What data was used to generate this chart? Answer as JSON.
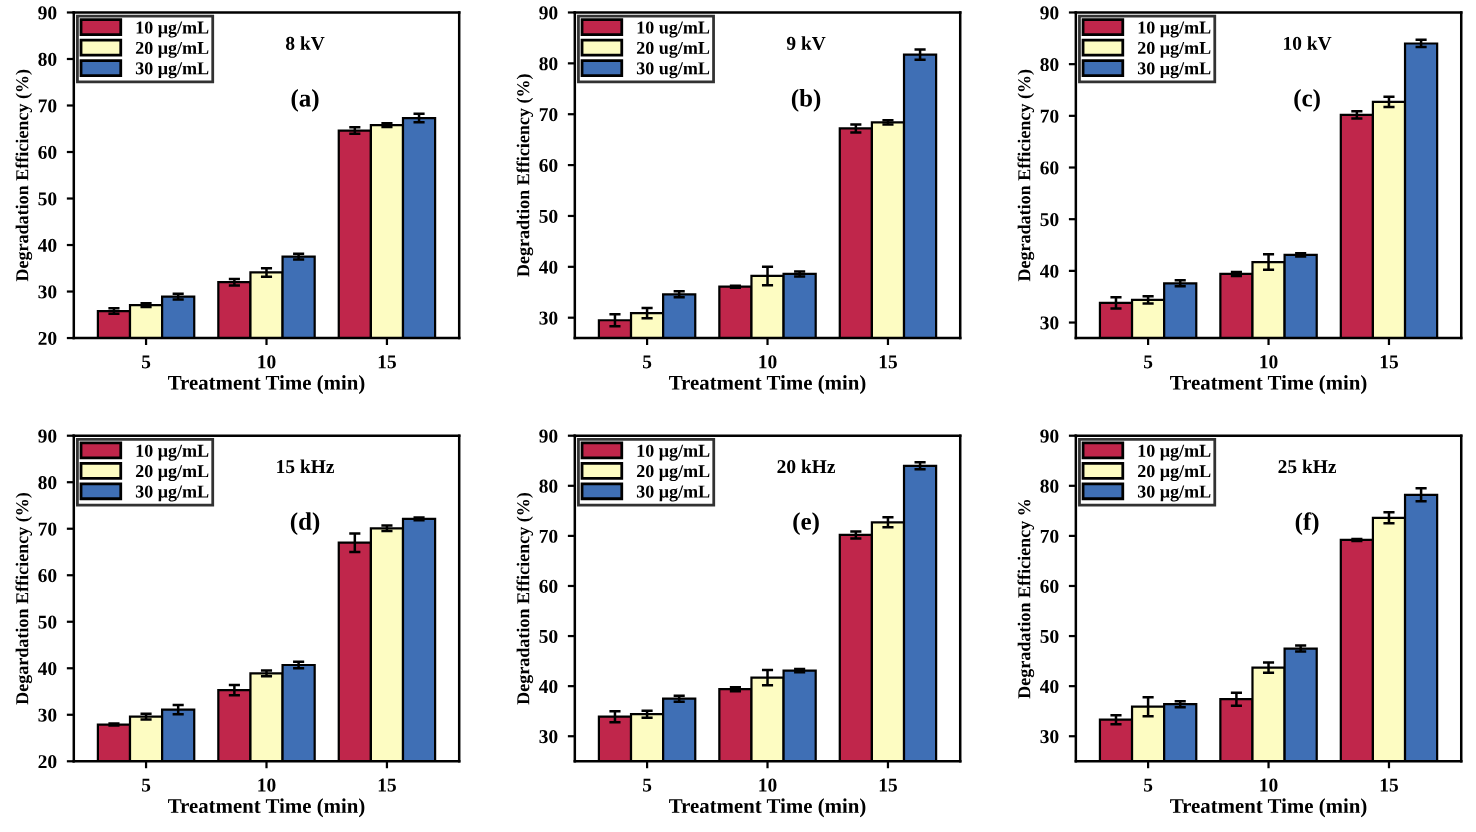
{
  "chart_data": [
    {
      "type": "bar",
      "categories": [
        "5",
        "10",
        "15"
      ],
      "xlabel": "Treatment Time (min)",
      "ylabel": "Degradation Efficiency (%)",
      "annotations": [
        "8 kV",
        "(a)"
      ],
      "ylim": [
        20,
        90
      ],
      "yticks": [
        20,
        30,
        40,
        50,
        60,
        70,
        80,
        90
      ],
      "legend": "top left",
      "grid": false,
      "series": [
        {
          "name": "10 μg/mL",
          "color": "#c0264b",
          "values": [
            25.8,
            32.0,
            64.6
          ],
          "errors": [
            0.6,
            0.7,
            0.7
          ]
        },
        {
          "name": "20 μg/mL",
          "color": "#fdfcc2",
          "values": [
            27.1,
            34.1,
            65.8
          ],
          "errors": [
            0.4,
            0.9,
            0.4
          ]
        },
        {
          "name": "30 μg/mL",
          "color": "#3f6fb5",
          "values": [
            28.9,
            37.5,
            67.3
          ],
          "errors": [
            0.6,
            0.6,
            0.9
          ]
        }
      ]
    },
    {
      "type": "bar",
      "categories": [
        "5",
        "10",
        "15"
      ],
      "xlabel": "Treatment Time (min)",
      "ylabel": "Degradtion Efficiency (%)",
      "annotations": [
        "9 kV",
        "(b)"
      ],
      "ylim": [
        26,
        90
      ],
      "yticks": [
        30,
        40,
        50,
        60,
        70,
        80,
        90
      ],
      "legend": "top left",
      "grid": false,
      "series": [
        {
          "name": "10 ug/mL",
          "color": "#c0264b",
          "values": [
            29.5,
            36.1,
            67.2
          ],
          "errors": [
            1.2,
            0.2,
            0.8
          ]
        },
        {
          "name": "20 ug/mL",
          "color": "#fdfcc2",
          "values": [
            30.9,
            38.2,
            68.4
          ],
          "errors": [
            1.0,
            1.8,
            0.4
          ]
        },
        {
          "name": "30 ug/mL",
          "color": "#3f6fb5",
          "values": [
            34.6,
            38.6,
            81.7
          ],
          "errors": [
            0.6,
            0.5,
            1.0
          ]
        }
      ]
    },
    {
      "type": "bar",
      "categories": [
        "5",
        "10",
        "15"
      ],
      "xlabel": "Treatment Time (min)",
      "ylabel": "Degradation Efficiency (%)",
      "annotations": [
        "10 kV",
        "(c)"
      ],
      "ylim": [
        27,
        90
      ],
      "yticks": [
        30,
        40,
        50,
        60,
        70,
        80,
        90
      ],
      "legend": "top left",
      "grid": false,
      "series": [
        {
          "name": "10 μg/mL",
          "color": "#c0264b",
          "values": [
            33.8,
            39.4,
            70.2
          ],
          "errors": [
            1.1,
            0.4,
            0.7
          ]
        },
        {
          "name": "20 μg/mL",
          "color": "#fdfcc2",
          "values": [
            34.4,
            41.7,
            72.7
          ],
          "errors": [
            0.7,
            1.5,
            1.0
          ]
        },
        {
          "name": "30 μg/mL",
          "color": "#3f6fb5",
          "values": [
            37.6,
            43.1,
            84.0
          ],
          "errors": [
            0.6,
            0.3,
            0.7
          ]
        }
      ]
    },
    {
      "type": "bar",
      "categories": [
        "5",
        "10",
        "15"
      ],
      "xlabel": "Treatment Time (min)",
      "ylabel": "Degardation Efficiency (%)",
      "annotations": [
        "15 kHz",
        "(d)"
      ],
      "ylim": [
        20,
        90
      ],
      "yticks": [
        20,
        30,
        40,
        50,
        60,
        70,
        80,
        90
      ],
      "legend": "top left",
      "grid": false,
      "series": [
        {
          "name": "10 μg/mL",
          "color": "#c0264b",
          "values": [
            27.9,
            35.3,
            67.0
          ],
          "errors": [
            0.2,
            1.1,
            2.0
          ]
        },
        {
          "name": "20 μg/mL",
          "color": "#fdfcc2",
          "values": [
            29.6,
            38.9,
            70.1
          ],
          "errors": [
            0.6,
            0.6,
            0.6
          ]
        },
        {
          "name": "30 μg/mL",
          "color": "#3f6fb5",
          "values": [
            31.1,
            40.7,
            72.1
          ],
          "errors": [
            1.0,
            0.7,
            0.3
          ]
        }
      ]
    },
    {
      "type": "bar",
      "categories": [
        "5",
        "10",
        "15"
      ],
      "xlabel": "Treatment Time (min)",
      "ylabel": "Degradation Efficiency (%)",
      "annotations": [
        "20 kHz",
        "(e)"
      ],
      "ylim": [
        25,
        90
      ],
      "yticks": [
        30,
        40,
        50,
        60,
        70,
        80,
        90
      ],
      "legend": "top left",
      "grid": false,
      "series": [
        {
          "name": "10 μg/mL",
          "color": "#c0264b",
          "values": [
            33.9,
            39.4,
            70.2
          ],
          "errors": [
            1.1,
            0.4,
            0.7
          ]
        },
        {
          "name": "20 μg/mL",
          "color": "#fdfcc2",
          "values": [
            34.4,
            41.7,
            72.7
          ],
          "errors": [
            0.7,
            1.5,
            1.0
          ]
        },
        {
          "name": "30 μg/mL",
          "color": "#3f6fb5",
          "values": [
            37.5,
            43.1,
            84.0
          ],
          "errors": [
            0.6,
            0.3,
            0.7
          ]
        }
      ]
    },
    {
      "type": "bar",
      "categories": [
        "5",
        "10",
        "15"
      ],
      "xlabel": "Treatment Time (min)",
      "ylabel": "Degradation Efficiency %",
      "annotations": [
        "25 kHz",
        "(f)"
      ],
      "ylim": [
        25,
        90
      ],
      "yticks": [
        30,
        40,
        50,
        60,
        70,
        80,
        90
      ],
      "legend": "top left",
      "grid": false,
      "series": [
        {
          "name": "10 μg/mL",
          "color": "#c0264b",
          "values": [
            33.3,
            37.4,
            69.2
          ],
          "errors": [
            0.9,
            1.3,
            0.2
          ]
        },
        {
          "name": "20 μg/mL",
          "color": "#fdfcc2",
          "values": [
            35.9,
            43.7,
            73.6
          ],
          "errors": [
            1.9,
            1.0,
            1.1
          ]
        },
        {
          "name": "30 μg/mL",
          "color": "#3f6fb5",
          "values": [
            36.4,
            47.5,
            78.2
          ],
          "errors": [
            0.6,
            0.6,
            1.3
          ]
        }
      ]
    }
  ]
}
